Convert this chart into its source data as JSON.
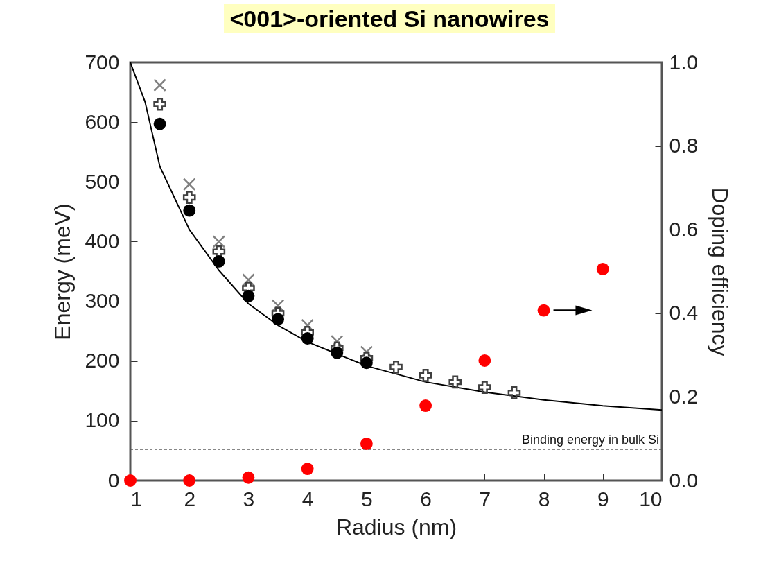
{
  "chart_data": {
    "type": "scatter",
    "title": "<001>-oriented Si nanowires",
    "xlabel": "Radius (nm)",
    "ylabel": "Energy (meV)",
    "y2label": "Doping efficiency",
    "xlim": [
      1,
      10
    ],
    "xticks": [
      1,
      2,
      3,
      4,
      5,
      6,
      7,
      8,
      9,
      10
    ],
    "ylim": [
      0,
      700
    ],
    "yticks": [
      0,
      100,
      200,
      300,
      400,
      500,
      600,
      700
    ],
    "y2lim": [
      0,
      1
    ],
    "y2ticks": [
      {
        "value": 0,
        "label": "0.0"
      },
      0.2,
      0.4,
      0.6,
      0.8,
      {
        "value": 1,
        "label": "1.0"
      }
    ],
    "series": [
      {
        "type": "line",
        "color": "#000000",
        "marker": "none",
        "line_style": "solid",
        "x": [
          1,
          1.25,
          1.5,
          2,
          2.5,
          3,
          3.5,
          4,
          5,
          6,
          7,
          8,
          9,
          10
        ],
        "values": [
          700,
          634,
          526,
          420,
          352,
          296,
          260,
          232,
          192,
          165,
          148,
          135,
          125,
          118
        ]
      },
      {
        "color": "#808080",
        "marker": "cross",
        "x": [
          1.5,
          2,
          2.5,
          3,
          3.5,
          4,
          4.5,
          5
        ],
        "values": [
          662,
          496,
          400,
          336,
          293,
          260,
          233,
          215
        ]
      },
      {
        "color": "#404040",
        "marker": "plus",
        "x": [
          1.5,
          2,
          2.5,
          3,
          3.5,
          4,
          4.5,
          5,
          5.5,
          6,
          6.5,
          7,
          7.5
        ],
        "values": [
          630,
          474,
          383,
          322,
          280,
          248,
          222,
          205,
          190,
          176,
          165,
          156,
          147
        ]
      },
      {
        "color": "#000000",
        "marker": "circle",
        "x": [
          1.5,
          2,
          2.5,
          3,
          3.5,
          4,
          4.5,
          5
        ],
        "values": [
          597,
          452,
          367,
          309,
          270,
          238,
          214,
          197
        ]
      },
      {
        "color": "#ff0000",
        "marker": "circle",
        "axis": "y2",
        "x": [
          1,
          2,
          3,
          4,
          5,
          6,
          7,
          8,
          9
        ],
        "values": [
          0,
          0,
          0.007,
          0.028,
          0.088,
          0.179,
          0.287,
          0.407,
          0.506
        ]
      }
    ],
    "ref_lines": [
      {
        "axis": "y",
        "value": 52,
        "label": "Binding energy in bulk Si",
        "line_style": "dashed",
        "color": "#555555"
      }
    ]
  }
}
